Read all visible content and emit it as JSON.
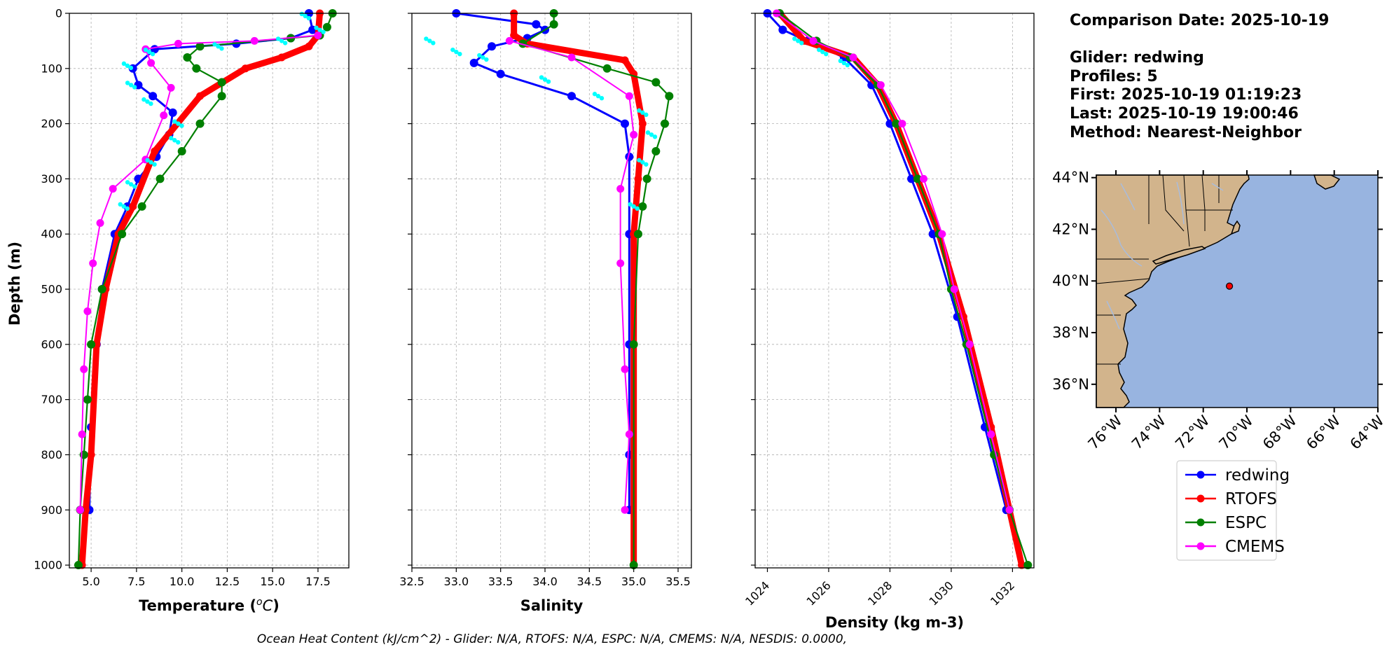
{
  "info": {
    "comparison_date": "Comparison Date: 2025-10-19",
    "glider": "Glider: redwing",
    "profiles": "Profiles: 5",
    "first": "First: 2025-10-19 01:19:23",
    "last": "Last: 2025-10-19 19:00:46",
    "method": "Method: Nearest-Neighbor"
  },
  "footer": "Ocean Heat Content (kJ/cm^2) - Glider: N/A,  RTOFS: N/A,  ESPC: N/A,  CMEMS: N/A,  NESDIS: 0.0000,",
  "colors": {
    "redwing": "#0000ff",
    "RTOFS": "#ff0000",
    "ESPC": "#008000",
    "CMEMS": "#ff00ff",
    "scatter": "#00ffff",
    "land": "#d2b48c",
    "ocean": "#98b4e0",
    "grid": "#b0b0b0"
  },
  "legend": [
    "redwing",
    "RTOFS",
    "ESPC",
    "CMEMS"
  ],
  "map": {
    "lat_ticks": [
      "44°N",
      "42°N",
      "40°N",
      "38°N",
      "36°N"
    ],
    "lon_ticks": [
      "76°W",
      "74°W",
      "72°W",
      "70°W",
      "68°W",
      "66°W",
      "64°W"
    ],
    "lat_range": [
      35.1,
      44.1
    ],
    "lon_range": [
      -76.9,
      -64.0
    ],
    "lat_values": [
      44,
      42,
      40,
      38,
      36
    ],
    "lon_values": [
      -76,
      -74,
      -72,
      -70,
      -68,
      -66,
      -64
    ],
    "glider_position": {
      "lat": 39.8,
      "lon": -70.8
    }
  },
  "chart_data": [
    {
      "type": "line",
      "xlabel": "Temperature ($^{o}C$)",
      "ylabel": "Depth (m)",
      "xlim": [
        3.8,
        19.2
      ],
      "ylim": [
        1005,
        0
      ],
      "xticks": [
        5.0,
        7.5,
        10.0,
        12.5,
        15.0,
        17.5
      ],
      "xtick_labels": [
        "5.0",
        "7.5",
        "10.0",
        "12.5",
        "15.0",
        "17.5"
      ],
      "yticks": [
        0,
        100,
        200,
        300,
        400,
        500,
        600,
        700,
        800,
        900,
        1000
      ],
      "grid": true,
      "series": [
        {
          "name": "redwing",
          "x": [
            17.0,
            17.2,
            16.0,
            13.0,
            8.5,
            7.3,
            7.6,
            8.4,
            9.5,
            9.3,
            8.6,
            7.6,
            7.0,
            6.3,
            5.6,
            5.3,
            5.0,
            4.9
          ],
          "y": [
            0,
            30,
            45,
            55,
            65,
            100,
            130,
            150,
            180,
            220,
            260,
            300,
            350,
            400,
            500,
            600,
            750,
            900
          ]
        },
        {
          "name": "RTOFS",
          "x": [
            17.6,
            17.5,
            17.0,
            15.5,
            13.5,
            11.0,
            8.5,
            7.3,
            6.5,
            5.8,
            5.3,
            5.0,
            4.7,
            4.5
          ],
          "y": [
            0,
            40,
            60,
            80,
            100,
            150,
            250,
            350,
            400,
            500,
            600,
            800,
            900,
            1000
          ]
        },
        {
          "name": "ESPC",
          "x": [
            18.3,
            18.0,
            17.6,
            16.0,
            11.0,
            10.3,
            10.8,
            12.2,
            12.2,
            11.0,
            10.0,
            8.8,
            7.8,
            6.7,
            5.6,
            5.0,
            4.8,
            4.6,
            4.4,
            4.3
          ],
          "y": [
            0,
            25,
            40,
            45,
            60,
            80,
            100,
            125,
            150,
            200,
            250,
            300,
            350,
            400,
            500,
            600,
            700,
            800,
            900,
            1000
          ]
        },
        {
          "name": "CMEMS",
          "x": [
            17.5,
            14.0,
            9.8,
            8.0,
            8.3,
            9.4,
            9.0,
            8.0,
            6.2,
            5.5,
            5.1,
            4.8,
            4.6,
            4.5,
            4.4,
            4.4
          ],
          "y": [
            40,
            50,
            55,
            65,
            90,
            135,
            185,
            265,
            318,
            380,
            453,
            540,
            645,
            763,
            900,
            900
          ]
        },
        {
          "name": "glider-scatter",
          "x": [
            16.8,
            17.6,
            15.5,
            12.0,
            8.2,
            7.0,
            7.2,
            8.1,
            9.8,
            9.6,
            8.3,
            7.2,
            6.8
          ],
          "y": [
            5,
            30,
            50,
            60,
            70,
            95,
            130,
            160,
            200,
            230,
            270,
            310,
            350
          ]
        }
      ]
    },
    {
      "type": "line",
      "xlabel": "Salinity",
      "xlim": [
        32.5,
        35.65
      ],
      "ylim": [
        1005,
        0
      ],
      "xticks": [
        32.5,
        33.0,
        33.5,
        34.0,
        34.5,
        35.0,
        35.5
      ],
      "xtick_labels": [
        "32.5",
        "33.0",
        "33.5",
        "34.0",
        "34.5",
        "35.0",
        "35.5"
      ],
      "yticks": [
        0,
        100,
        200,
        300,
        400,
        500,
        600,
        700,
        800,
        900,
        1000
      ],
      "grid": true,
      "series": [
        {
          "name": "redwing",
          "x": [
            33.0,
            33.9,
            34.0,
            33.8,
            33.4,
            33.2,
            33.5,
            34.3,
            34.9,
            34.95,
            34.95,
            34.95,
            34.95,
            34.95
          ],
          "y": [
            0,
            20,
            30,
            45,
            60,
            90,
            110,
            150,
            200,
            260,
            400,
            600,
            800,
            900
          ]
        },
        {
          "name": "RTOFS",
          "x": [
            33.65,
            33.65,
            33.8,
            34.9,
            35.0,
            35.1,
            35.05,
            35.0,
            35.0,
            35.0
          ],
          "y": [
            0,
            40,
            55,
            85,
            110,
            200,
            300,
            400,
            600,
            1000
          ]
        },
        {
          "name": "ESPC",
          "x": [
            34.1,
            34.1,
            33.75,
            34.7,
            35.25,
            35.4,
            35.35,
            35.25,
            35.15,
            35.1,
            35.05,
            35.0,
            35.0
          ],
          "y": [
            0,
            20,
            55,
            100,
            125,
            150,
            200,
            250,
            300,
            350,
            400,
            600,
            1000
          ]
        },
        {
          "name": "CMEMS",
          "x": [
            33.6,
            34.3,
            34.95,
            35.0,
            34.85,
            34.85,
            34.9,
            34.95,
            34.9
          ],
          "y": [
            50,
            80,
            150,
            220,
            318,
            453,
            645,
            763,
            900
          ]
        },
        {
          "name": "glider-scatter",
          "x": [
            32.7,
            33.0,
            33.3,
            34.0,
            34.6,
            35.1,
            35.2,
            35.1,
            35.0
          ],
          "y": [
            50,
            70,
            80,
            120,
            150,
            180,
            220,
            270,
            350
          ]
        }
      ]
    },
    {
      "type": "line",
      "xlabel": "Density (kg m-3)",
      "xlim": [
        1023.6,
        1032.7
      ],
      "ylim": [
        1005,
        0
      ],
      "xticks": [
        1024,
        1026,
        1028,
        1030,
        1032
      ],
      "xtick_labels": [
        "1024",
        "1026",
        "1028",
        "1030",
        "1032"
      ],
      "yticks": [
        0,
        100,
        200,
        300,
        400,
        500,
        600,
        700,
        800,
        900,
        1000
      ],
      "grid": true,
      "series": [
        {
          "name": "redwing",
          "x": [
            1024.0,
            1024.5,
            1025.3,
            1026.5,
            1027.4,
            1028.0,
            1028.7,
            1029.4,
            1030.2,
            1031.1,
            1031.8
          ],
          "y": [
            0,
            30,
            50,
            80,
            130,
            200,
            300,
            400,
            550,
            750,
            900
          ]
        },
        {
          "name": "RTOFS",
          "x": [
            1024.4,
            1025.2,
            1026.8,
            1027.6,
            1028.2,
            1028.9,
            1029.6,
            1030.4,
            1031.3,
            1031.9,
            1032.3
          ],
          "y": [
            0,
            50,
            80,
            130,
            200,
            300,
            400,
            550,
            750,
            900,
            1000
          ]
        },
        {
          "name": "ESPC",
          "x": [
            1024.4,
            1025.6,
            1026.7,
            1027.6,
            1028.2,
            1028.9,
            1029.6,
            1030.0,
            1030.5,
            1031.4,
            1031.9,
            1032.5
          ],
          "y": [
            0,
            50,
            80,
            130,
            200,
            300,
            400,
            500,
            600,
            800,
            900,
            1000
          ]
        },
        {
          "name": "CMEMS",
          "x": [
            1024.3,
            1025.5,
            1026.8,
            1027.7,
            1028.4,
            1029.1,
            1029.7,
            1030.1,
            1030.6,
            1031.3,
            1031.9
          ],
          "y": [
            0,
            50,
            80,
            130,
            200,
            300,
            400,
            500,
            600,
            763,
            900
          ]
        },
        {
          "name": "glider-scatter",
          "x": [
            1025.0,
            1025.8,
            1026.5
          ],
          "y": [
            50,
            70,
            90
          ]
        }
      ]
    }
  ]
}
